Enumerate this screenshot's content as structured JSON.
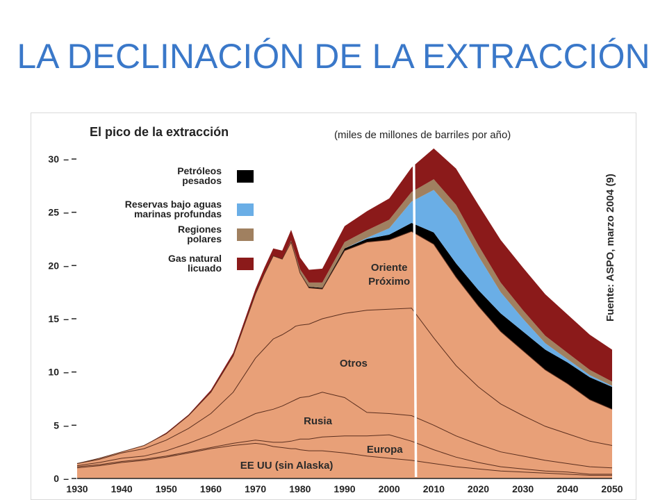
{
  "slide": {
    "title": "LA DECLINACIÓN DE LA EXTRACCIÓN"
  },
  "chart_data": {
    "type": "area",
    "title": "El pico de la extracción",
    "unit_label": "(miles de millones de barriles por año)",
    "source_note": "Fuente: ASPO, marzo 2004 (9)",
    "x": [
      1930,
      1935,
      1940,
      1945,
      1950,
      1955,
      1960,
      1965,
      1970,
      1972,
      1974,
      1976,
      1978,
      1979,
      1980,
      1982,
      1985,
      1990,
      1995,
      2000,
      2005,
      2010,
      2015,
      2020,
      2025,
      2030,
      2035,
      2040,
      2045,
      2050
    ],
    "ylim": [
      0,
      30
    ],
    "xlim": [
      1930,
      2050
    ],
    "yticks": [
      0,
      5,
      10,
      15,
      20,
      25,
      30
    ],
    "xticks": [
      1930,
      1940,
      1950,
      1960,
      1970,
      1980,
      1990,
      2000,
      2010,
      2020,
      2030,
      2040,
      2050
    ],
    "series": [
      {
        "name": "EE UU (sin Alaska)",
        "color": "#e8a078",
        "values": [
          1.0,
          1.2,
          1.5,
          1.7,
          2.0,
          2.4,
          2.8,
          3.1,
          3.3,
          3.2,
          3.0,
          2.9,
          2.8,
          2.8,
          2.7,
          2.6,
          2.6,
          2.4,
          2.1,
          1.9,
          1.7,
          1.4,
          1.1,
          0.9,
          0.7,
          0.6,
          0.5,
          0.4,
          0.3,
          0.3
        ]
      },
      {
        "name": "Europa",
        "color": "#e8a078",
        "values": [
          0.1,
          0.1,
          0.1,
          0.1,
          0.1,
          0.1,
          0.1,
          0.2,
          0.3,
          0.3,
          0.4,
          0.5,
          0.7,
          0.8,
          1.0,
          1.1,
          1.3,
          1.6,
          1.9,
          2.2,
          1.8,
          1.3,
          0.9,
          0.6,
          0.4,
          0.3,
          0.2,
          0.2,
          0.1,
          0.1
        ]
      },
      {
        "name": "Rusia",
        "color": "#e8a078",
        "values": [
          0.1,
          0.2,
          0.3,
          0.3,
          0.5,
          0.8,
          1.2,
          1.8,
          2.5,
          2.8,
          3.1,
          3.4,
          3.7,
          3.8,
          3.9,
          4.0,
          4.2,
          3.6,
          2.2,
          2.0,
          2.4,
          2.3,
          2.0,
          1.7,
          1.4,
          1.2,
          1.0,
          0.8,
          0.7,
          0.6
        ]
      },
      {
        "name": "Otros",
        "color": "#e8a078",
        "values": [
          0.2,
          0.3,
          0.5,
          0.7,
          1.0,
          1.4,
          2.0,
          3.0,
          5.2,
          5.9,
          6.6,
          6.7,
          6.8,
          6.9,
          6.8,
          6.8,
          6.9,
          7.9,
          9.6,
          9.8,
          10.1,
          8.2,
          6.6,
          5.4,
          4.5,
          3.8,
          3.2,
          2.8,
          2.4,
          2.1
        ]
      },
      {
        "name": "Oriente Próximo",
        "color": "#e8a078",
        "values": [
          0.0,
          0.1,
          0.1,
          0.3,
          0.6,
          1.2,
          2.0,
          3.4,
          6.0,
          7.0,
          7.8,
          7.1,
          8.2,
          6.5,
          4.9,
          3.4,
          2.8,
          5.9,
          6.4,
          6.5,
          7.2,
          8.8,
          8.3,
          7.6,
          6.8,
          6.1,
          5.3,
          4.7,
          3.9,
          3.4
        ]
      },
      {
        "name": "Petróleos pesados",
        "color": "#000000",
        "values": [
          0,
          0,
          0,
          0,
          0,
          0,
          0,
          0,
          0,
          0,
          0,
          0,
          0.05,
          0.05,
          0.05,
          0.1,
          0.1,
          0.2,
          0.3,
          0.5,
          0.8,
          1.1,
          1.3,
          1.5,
          1.7,
          1.8,
          1.9,
          2.0,
          2.1,
          2.1
        ]
      },
      {
        "name": "Reservas bajo aguas marinas profundas",
        "color": "#6aaee6",
        "values": [
          0,
          0,
          0,
          0,
          0,
          0,
          0,
          0,
          0,
          0,
          0,
          0,
          0,
          0,
          0,
          0,
          0,
          0,
          0.1,
          0.6,
          2.0,
          4.0,
          4.5,
          3.2,
          2.0,
          1.2,
          0.6,
          0.3,
          0.2,
          0.1
        ]
      },
      {
        "name": "Regiones polares",
        "color": "#a08060",
        "values": [
          0,
          0,
          0,
          0,
          0,
          0,
          0,
          0,
          0,
          0,
          0,
          0,
          0.1,
          0.2,
          0.3,
          0.4,
          0.5,
          0.6,
          0.7,
          0.8,
          0.9,
          1.0,
          1.0,
          1.0,
          0.9,
          0.8,
          0.7,
          0.6,
          0.5,
          0.4
        ]
      },
      {
        "name": "Gas natural licuado",
        "color": "#8b1a1a",
        "values": [
          0.0,
          0.0,
          0.0,
          0.0,
          0.1,
          0.1,
          0.2,
          0.3,
          0.5,
          0.6,
          0.7,
          0.8,
          1.0,
          1.1,
          1.1,
          1.2,
          1.3,
          1.5,
          1.8,
          2.0,
          2.3,
          2.9,
          3.4,
          3.8,
          4.0,
          4.0,
          3.9,
          3.6,
          3.3,
          3.0
        ]
      }
    ],
    "legend": [
      {
        "label_line1": "Petróleos",
        "label_line2": "pesados",
        "color": "#000000"
      },
      {
        "label_line1": "Reservas bajo aguas",
        "label_line2": "marinas profundas",
        "color": "#6aaee6"
      },
      {
        "label_line1": "Regiones",
        "label_line2": "polares",
        "color": "#a08060"
      },
      {
        "label_line1": "Gas natural",
        "label_line2": "licuado",
        "color": "#8b1a1a"
      }
    ],
    "region_labels": [
      {
        "text": "Oriente",
        "x": 2000,
        "y": 19.5
      },
      {
        "text": "Próximo",
        "x": 2000,
        "y": 18.2
      },
      {
        "text": "Otros",
        "x": 1992,
        "y": 10.5
      },
      {
        "text": "Rusia",
        "x": 1984,
        "y": 5.1
      },
      {
        "text": "Europa",
        "x": 1999,
        "y": 2.4
      },
      {
        "text": "EE UU (sin Alaska)",
        "x": 1977,
        "y": 0.9
      }
    ],
    "marker_line_x": 2006,
    "legend_position": "top-left"
  }
}
